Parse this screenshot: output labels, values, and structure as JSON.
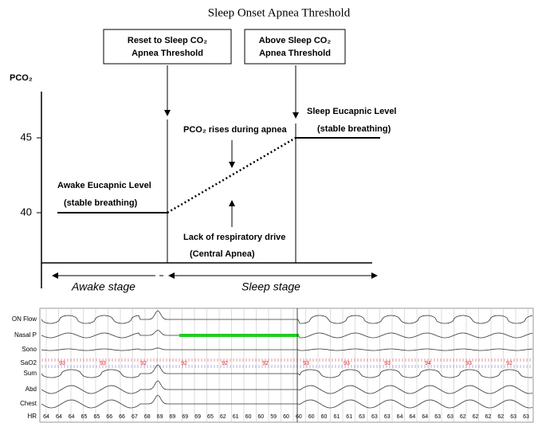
{
  "title": "Sleep Onset Apnea Threshold",
  "boxes": [
    {
      "lines": [
        "Reset to Sleep CO₂",
        "Apnea Threshold"
      ]
    },
    {
      "lines": [
        "Above Sleep CO₂",
        "Apnea Threshold"
      ]
    }
  ],
  "axis": {
    "label": "PCO₂",
    "ticks": [
      "45",
      "40"
    ]
  },
  "annotations": {
    "awake_level": [
      "Awake Eucapnic Level",
      "(stable breathing)"
    ],
    "sleep_level": [
      "Sleep Eucapnic Level",
      "(stable breathing)"
    ],
    "pco2_rises": "PCO₂ rises during apnea",
    "lack_drive": [
      "Lack of respiratory drive",
      "(Central Apnea)"
    ],
    "awake_stage": "Awake stage",
    "sleep_stage": "Sleep stage"
  },
  "trace": {
    "channels": [
      "ON Flow",
      "Nasal P",
      "Sono",
      "SaO2",
      "Sum",
      "Abd",
      "Chest",
      "HR"
    ],
    "sao2_values": [
      "93",
      "93",
      "92",
      "92",
      "92",
      "92",
      "93",
      "93",
      "93",
      "94",
      "93",
      "92"
    ],
    "hr_values": [
      "64",
      "64",
      "64",
      "65",
      "65",
      "66",
      "66",
      "67",
      "68",
      "69",
      "69",
      "69",
      "69",
      "65",
      "62",
      "61",
      "60",
      "60",
      "59",
      "60",
      "60",
      "60",
      "60",
      "61",
      "61",
      "63",
      "63",
      "63",
      "64",
      "64",
      "64",
      "63",
      "63",
      "62",
      "62",
      "62",
      "62",
      "63",
      "63"
    ]
  }
}
